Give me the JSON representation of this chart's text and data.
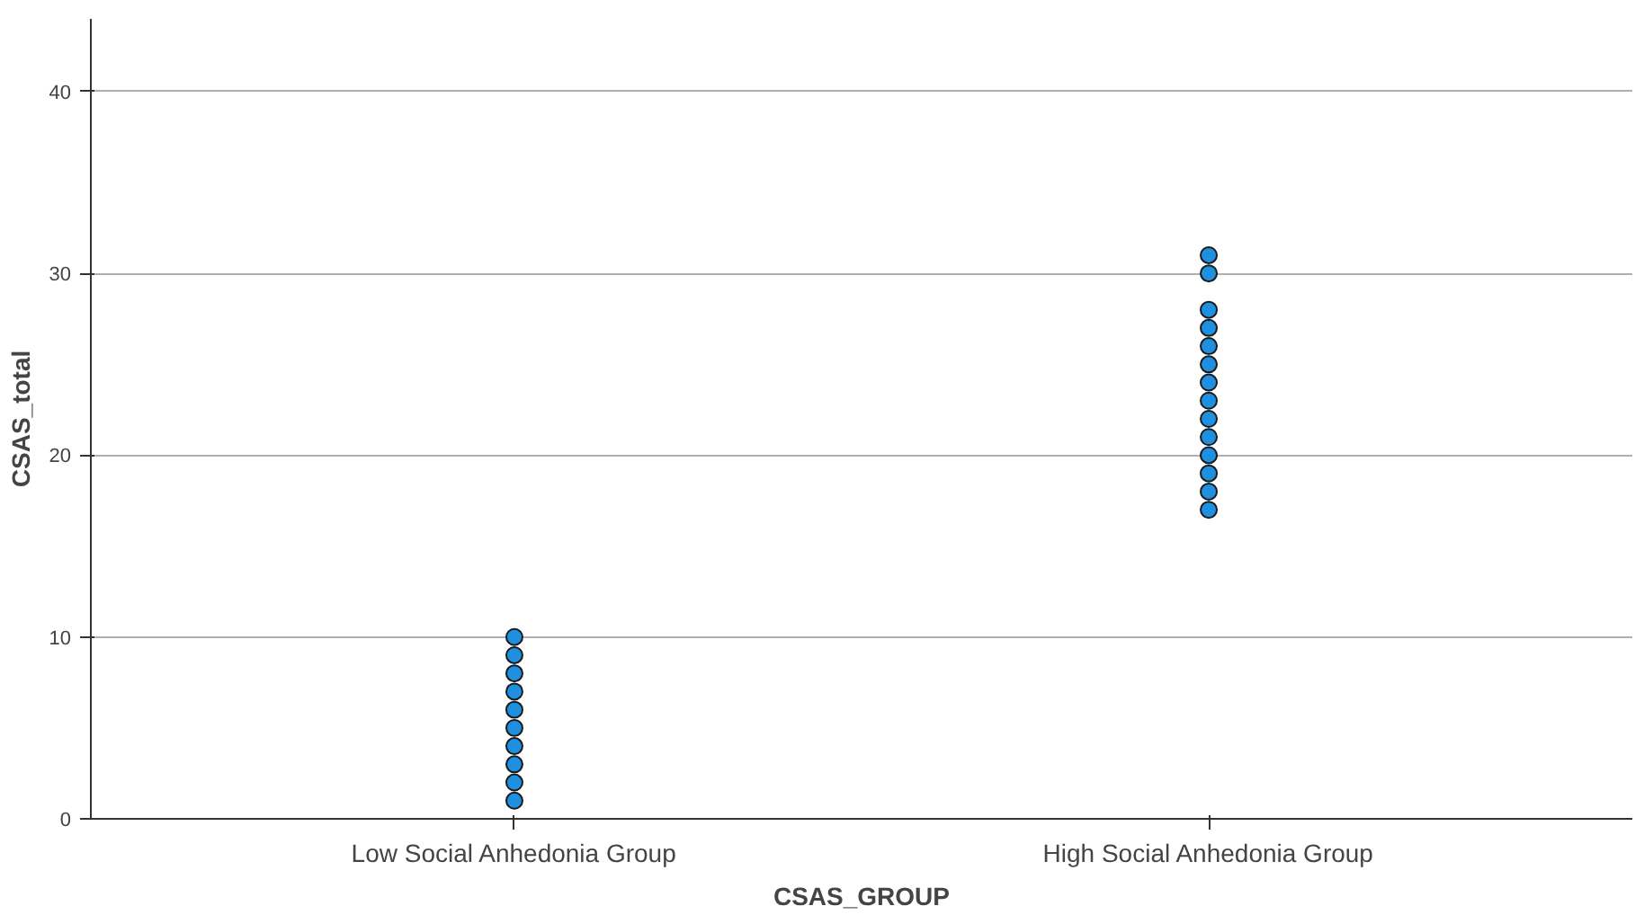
{
  "chart_data": {
    "type": "scatter",
    "xlabel": "CSAS_GROUP",
    "ylabel": "CSAS_total",
    "categories": [
      "Low Social Anhedonia Group",
      "High Social Anhedonia Group"
    ],
    "series": [
      {
        "color": "#1f8fe0",
        "x": [
          "Low Social Anhedonia Group",
          "Low Social Anhedonia Group",
          "Low Social Anhedonia Group",
          "Low Social Anhedonia Group",
          "Low Social Anhedonia Group",
          "Low Social Anhedonia Group",
          "Low Social Anhedonia Group",
          "Low Social Anhedonia Group",
          "Low Social Anhedonia Group",
          "Low Social Anhedonia Group",
          "High Social Anhedonia Group",
          "High Social Anhedonia Group",
          "High Social Anhedonia Group",
          "High Social Anhedonia Group",
          "High Social Anhedonia Group",
          "High Social Anhedonia Group",
          "High Social Anhedonia Group",
          "High Social Anhedonia Group",
          "High Social Anhedonia Group",
          "High Social Anhedonia Group",
          "High Social Anhedonia Group",
          "High Social Anhedonia Group",
          "High Social Anhedonia Group",
          "High Social Anhedonia Group"
        ],
        "values": [
          1,
          2,
          3,
          4,
          5,
          6,
          7,
          8,
          9,
          10,
          17,
          18,
          19,
          20,
          21,
          22,
          23,
          24,
          25,
          26,
          27,
          28,
          30,
          31
        ]
      }
    ],
    "ylim": [
      0,
      44
    ],
    "yticks": [
      0,
      10,
      20,
      30,
      40
    ],
    "grid": "y",
    "marker": "circle"
  }
}
